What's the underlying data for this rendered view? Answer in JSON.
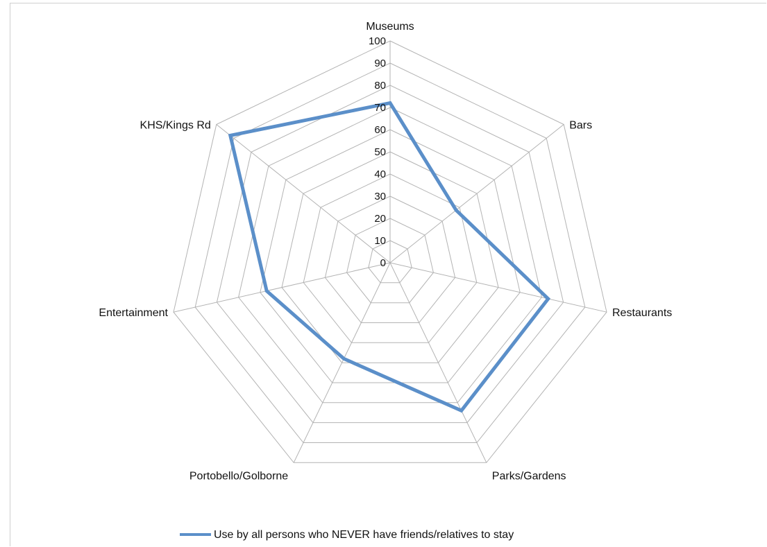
{
  "chart_data": {
    "type": "radar",
    "title": "",
    "categories": [
      "Museums",
      "Bars",
      "Restaurants",
      "Parks/Gardens",
      "Portobello/Golborne",
      "Entertainment",
      "KHS/Kings Rd"
    ],
    "series": [
      {
        "name": "Use by all persons who NEVER have friends/relatives to stay",
        "values": [
          72,
          38,
          73,
          74,
          48,
          57,
          92
        ],
        "color": "#5b8fc9"
      }
    ],
    "rlim": [
      0,
      100
    ],
    "ticks": [
      "0",
      "10",
      "20",
      "30",
      "40",
      "50",
      "60",
      "70",
      "80",
      "90",
      "100"
    ],
    "grid": true,
    "grid_color": "#b3b3b3",
    "legend_position": "bottom"
  }
}
